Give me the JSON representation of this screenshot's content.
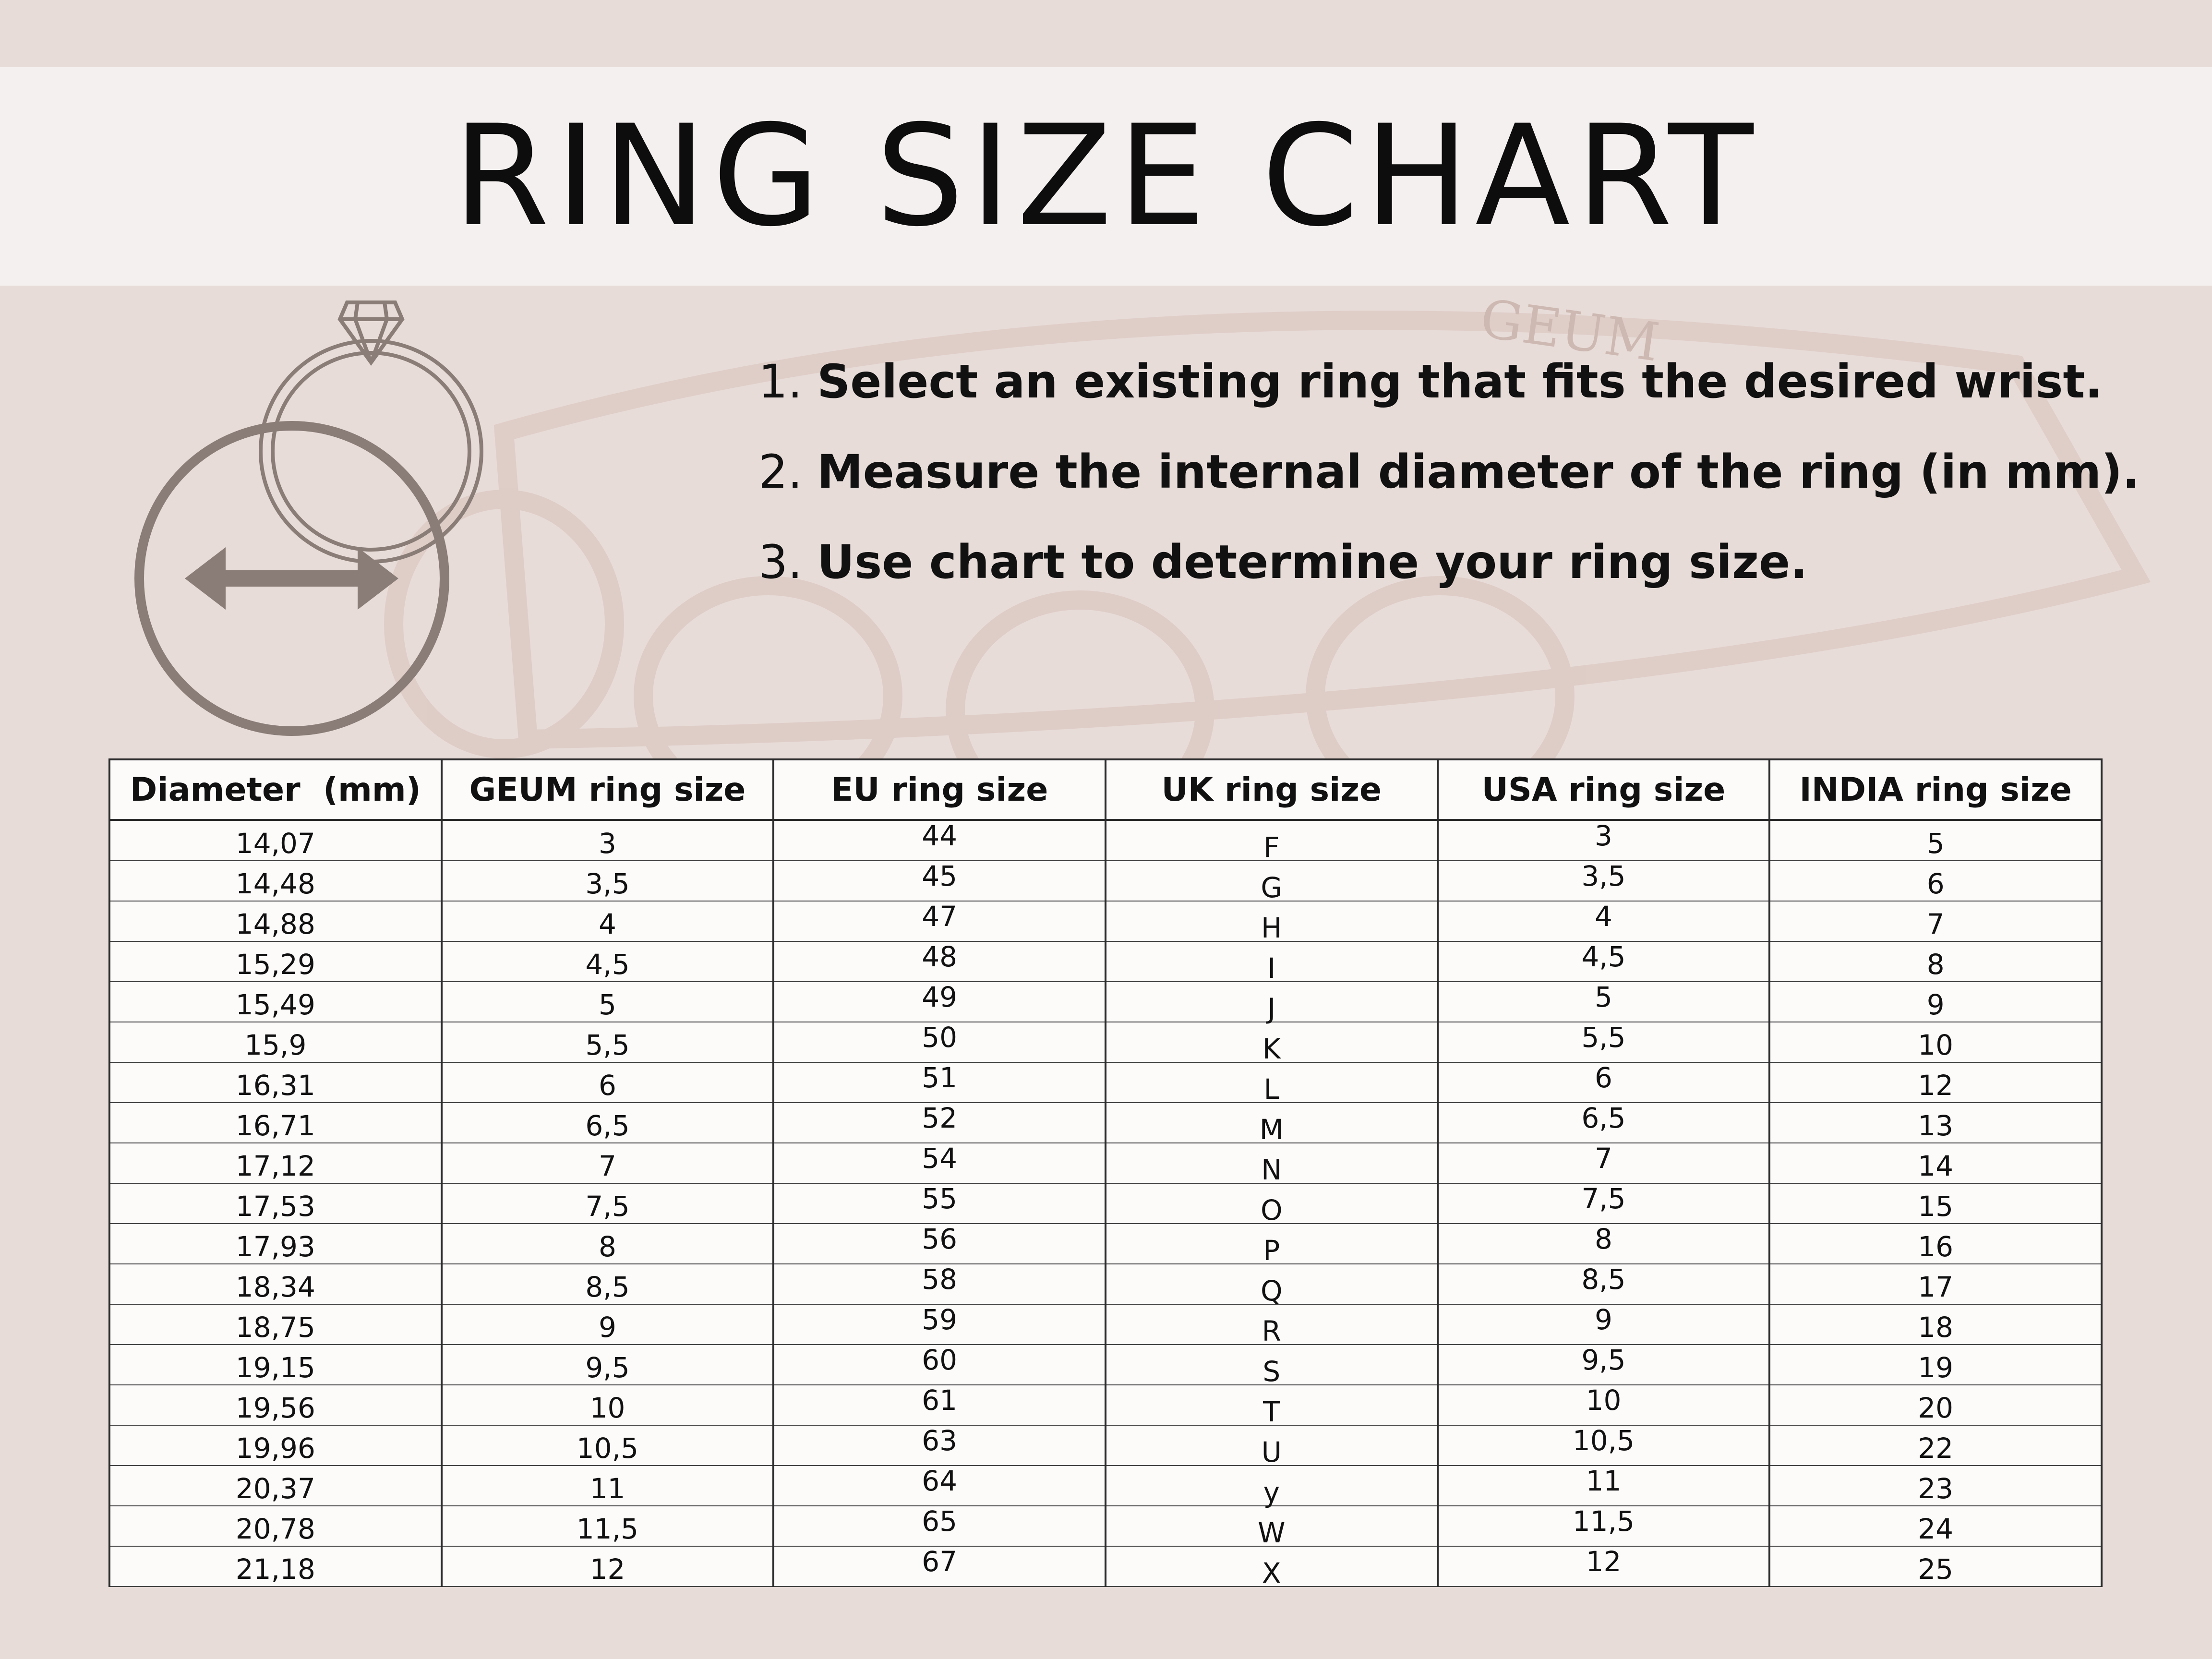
{
  "title": "RING SIZE CHART",
  "watermark_text": "GEUM",
  "colors": {
    "background": "#e8dcd8",
    "title_band": "#f4f0ef",
    "icon": "#8a7d78",
    "table_bg": "#fdfafa"
  },
  "steps": [
    {
      "num": "1.",
      "text": "Select an existing ring that fits the desired wrist."
    },
    {
      "num": "2.",
      "text": "Measure the internal diameter of the ring (in mm)."
    },
    {
      "num": "3.",
      "text": "Use chart to determine your ring size."
    }
  ],
  "icons": [
    "ring-diamond-icon",
    "diameter-circle-icon",
    "double-arrow-icon"
  ],
  "table": {
    "headers": [
      "Diameter  (mm)",
      "GEUM ring size",
      "EU ring size",
      "UK ring size",
      "USA ring size",
      "INDIA ring size"
    ],
    "rows": [
      [
        "14,07",
        "3",
        "44",
        "F",
        "3",
        "5"
      ],
      [
        "14,48",
        "3,5",
        "45",
        "G",
        "3,5",
        "6"
      ],
      [
        "14,88",
        "4",
        "47",
        "H",
        "4",
        "7"
      ],
      [
        "15,29",
        "4,5",
        "48",
        "I",
        "4,5",
        "8"
      ],
      [
        "15,49",
        "5",
        "49",
        "J",
        "5",
        "9"
      ],
      [
        "15,9",
        "5,5",
        "50",
        "K",
        "5,5",
        "10"
      ],
      [
        "16,31",
        "6",
        "51",
        "L",
        "6",
        "12"
      ],
      [
        "16,71",
        "6,5",
        "52",
        "M",
        "6,5",
        "13"
      ],
      [
        "17,12",
        "7",
        "54",
        "N",
        "7",
        "14"
      ],
      [
        "17,53",
        "7,5",
        "55",
        "O",
        "7,5",
        "15"
      ],
      [
        "17,93",
        "8",
        "56",
        "P",
        "8",
        "16"
      ],
      [
        "18,34",
        "8,5",
        "58",
        "Q",
        "8,5",
        "17"
      ],
      [
        "18,75",
        "9",
        "59",
        "R",
        "9",
        "18"
      ],
      [
        "19,15",
        "9,5",
        "60",
        "S",
        "9,5",
        "19"
      ],
      [
        "19,56",
        "10",
        "61",
        "T",
        "10",
        "20"
      ],
      [
        "19,96",
        "10,5",
        "63",
        "U",
        "10,5",
        "22"
      ],
      [
        "20,37",
        "11",
        "64",
        "y",
        "11",
        "23"
      ],
      [
        "20,78",
        "11,5",
        "65",
        "W",
        "11,5",
        "24"
      ],
      [
        "21,18",
        "12",
        "67",
        "X",
        "12",
        "25"
      ]
    ]
  }
}
